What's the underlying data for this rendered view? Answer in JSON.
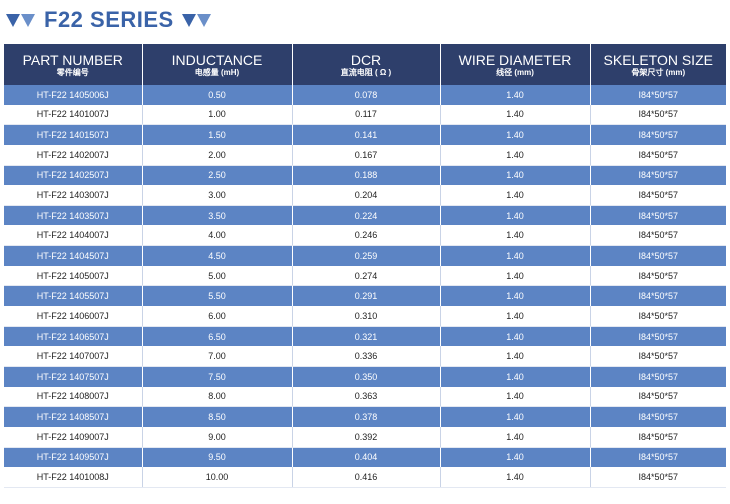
{
  "title": "F22 SERIES",
  "columns": [
    {
      "en": "PART NUMBER",
      "cn": "零件编号"
    },
    {
      "en": "INDUCTANCE",
      "cn": "电感量 (mH)"
    },
    {
      "en": "DCR",
      "cn": "直流电阻 ( Ω )"
    },
    {
      "en": "WIRE DIAMETER",
      "cn": "线径 (mm)"
    },
    {
      "en": "SKELETON SIZE",
      "cn": "骨架尺寸 (mm)"
    }
  ],
  "rows": [
    [
      "HT-F22 1405006J",
      "0.50",
      "0.078",
      "1.40",
      "I84*50*57"
    ],
    [
      "HT-F22 1401007J",
      "1.00",
      "0.117",
      "1.40",
      "I84*50*57"
    ],
    [
      "HT-F22 1401507J",
      "1.50",
      "0.141",
      "1.40",
      "I84*50*57"
    ],
    [
      "HT-F22 1402007J",
      "2.00",
      "0.167",
      "1.40",
      "I84*50*57"
    ],
    [
      "HT-F22 1402507J",
      "2.50",
      "0.188",
      "1.40",
      "I84*50*57"
    ],
    [
      "HT-F22 1403007J",
      "3.00",
      "0.204",
      "1.40",
      "I84*50*57"
    ],
    [
      "HT-F22 1403507J",
      "3.50",
      "0.224",
      "1.40",
      "I84*50*57"
    ],
    [
      "HT-F22 1404007J",
      "4.00",
      "0.246",
      "1.40",
      "I84*50*57"
    ],
    [
      "HT-F22 1404507J",
      "4.50",
      "0.259",
      "1.40",
      "I84*50*57"
    ],
    [
      "HT-F22 1405007J",
      "5.00",
      "0.274",
      "1.40",
      "I84*50*57"
    ],
    [
      "HT-F22 1405507J",
      "5.50",
      "0.291",
      "1.40",
      "I84*50*57"
    ],
    [
      "HT-F22 1406007J",
      "6.00",
      "0.310",
      "1.40",
      "I84*50*57"
    ],
    [
      "HT-F22 1406507J",
      "6.50",
      "0.321",
      "1.40",
      "I84*50*57"
    ],
    [
      "HT-F22 1407007J",
      "7.00",
      "0.336",
      "1.40",
      "I84*50*57"
    ],
    [
      "HT-F22 1407507J",
      "7.50",
      "0.350",
      "1.40",
      "I84*50*57"
    ],
    [
      "HT-F22 1408007J",
      "8.00",
      "0.363",
      "1.40",
      "I84*50*57"
    ],
    [
      "HT-F22 1408507J",
      "8.50",
      "0.378",
      "1.40",
      "I84*50*57"
    ],
    [
      "HT-F22 1409007J",
      "9.00",
      "0.392",
      "1.40",
      "I84*50*57"
    ],
    [
      "HT-F22 1409507J",
      "9.50",
      "0.404",
      "1.40",
      "I84*50*57"
    ],
    [
      "HT-F22 1401008J",
      "10.00",
      "0.416",
      "1.40",
      "I84*50*57"
    ]
  ],
  "colors": {
    "title": "#3a63a8",
    "header_bg": "#2e3f6b",
    "stripe_bg": "#5c84c4"
  },
  "icons": [
    "triangle-down-icon"
  ]
}
